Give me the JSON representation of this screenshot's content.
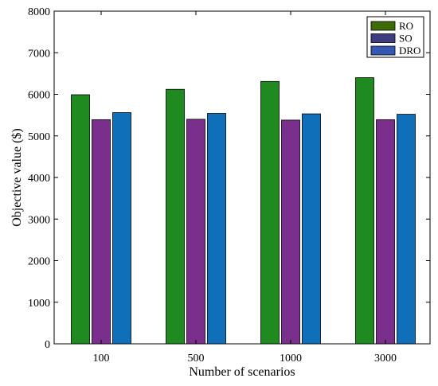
{
  "chart_data": {
    "type": "bar",
    "categories": [
      "100",
      "500",
      "1000",
      "3000"
    ],
    "series": [
      {
        "name": "RO",
        "values": [
          5990,
          6120,
          6310,
          6400
        ],
        "color": "#1f8a1f",
        "legend_color": "#3f6b06"
      },
      {
        "name": "SO",
        "values": [
          5390,
          5400,
          5380,
          5390
        ],
        "color": "#7a2f8c",
        "legend_color": "#3f3d82"
      },
      {
        "name": "DRO",
        "values": [
          5560,
          5540,
          5530,
          5520
        ],
        "color": "#0f6fb8",
        "legend_color": "#3557b5"
      }
    ],
    "xlabel": "Number of scenarios",
    "ylabel": "Objective value ($)",
    "ylim": [
      0,
      8000
    ],
    "yticks": [
      "0",
      "1000",
      "2000",
      "3000",
      "4000",
      "5000",
      "6000",
      "7000",
      "8000"
    ],
    "grid": false,
    "legend_position": "top-right"
  }
}
